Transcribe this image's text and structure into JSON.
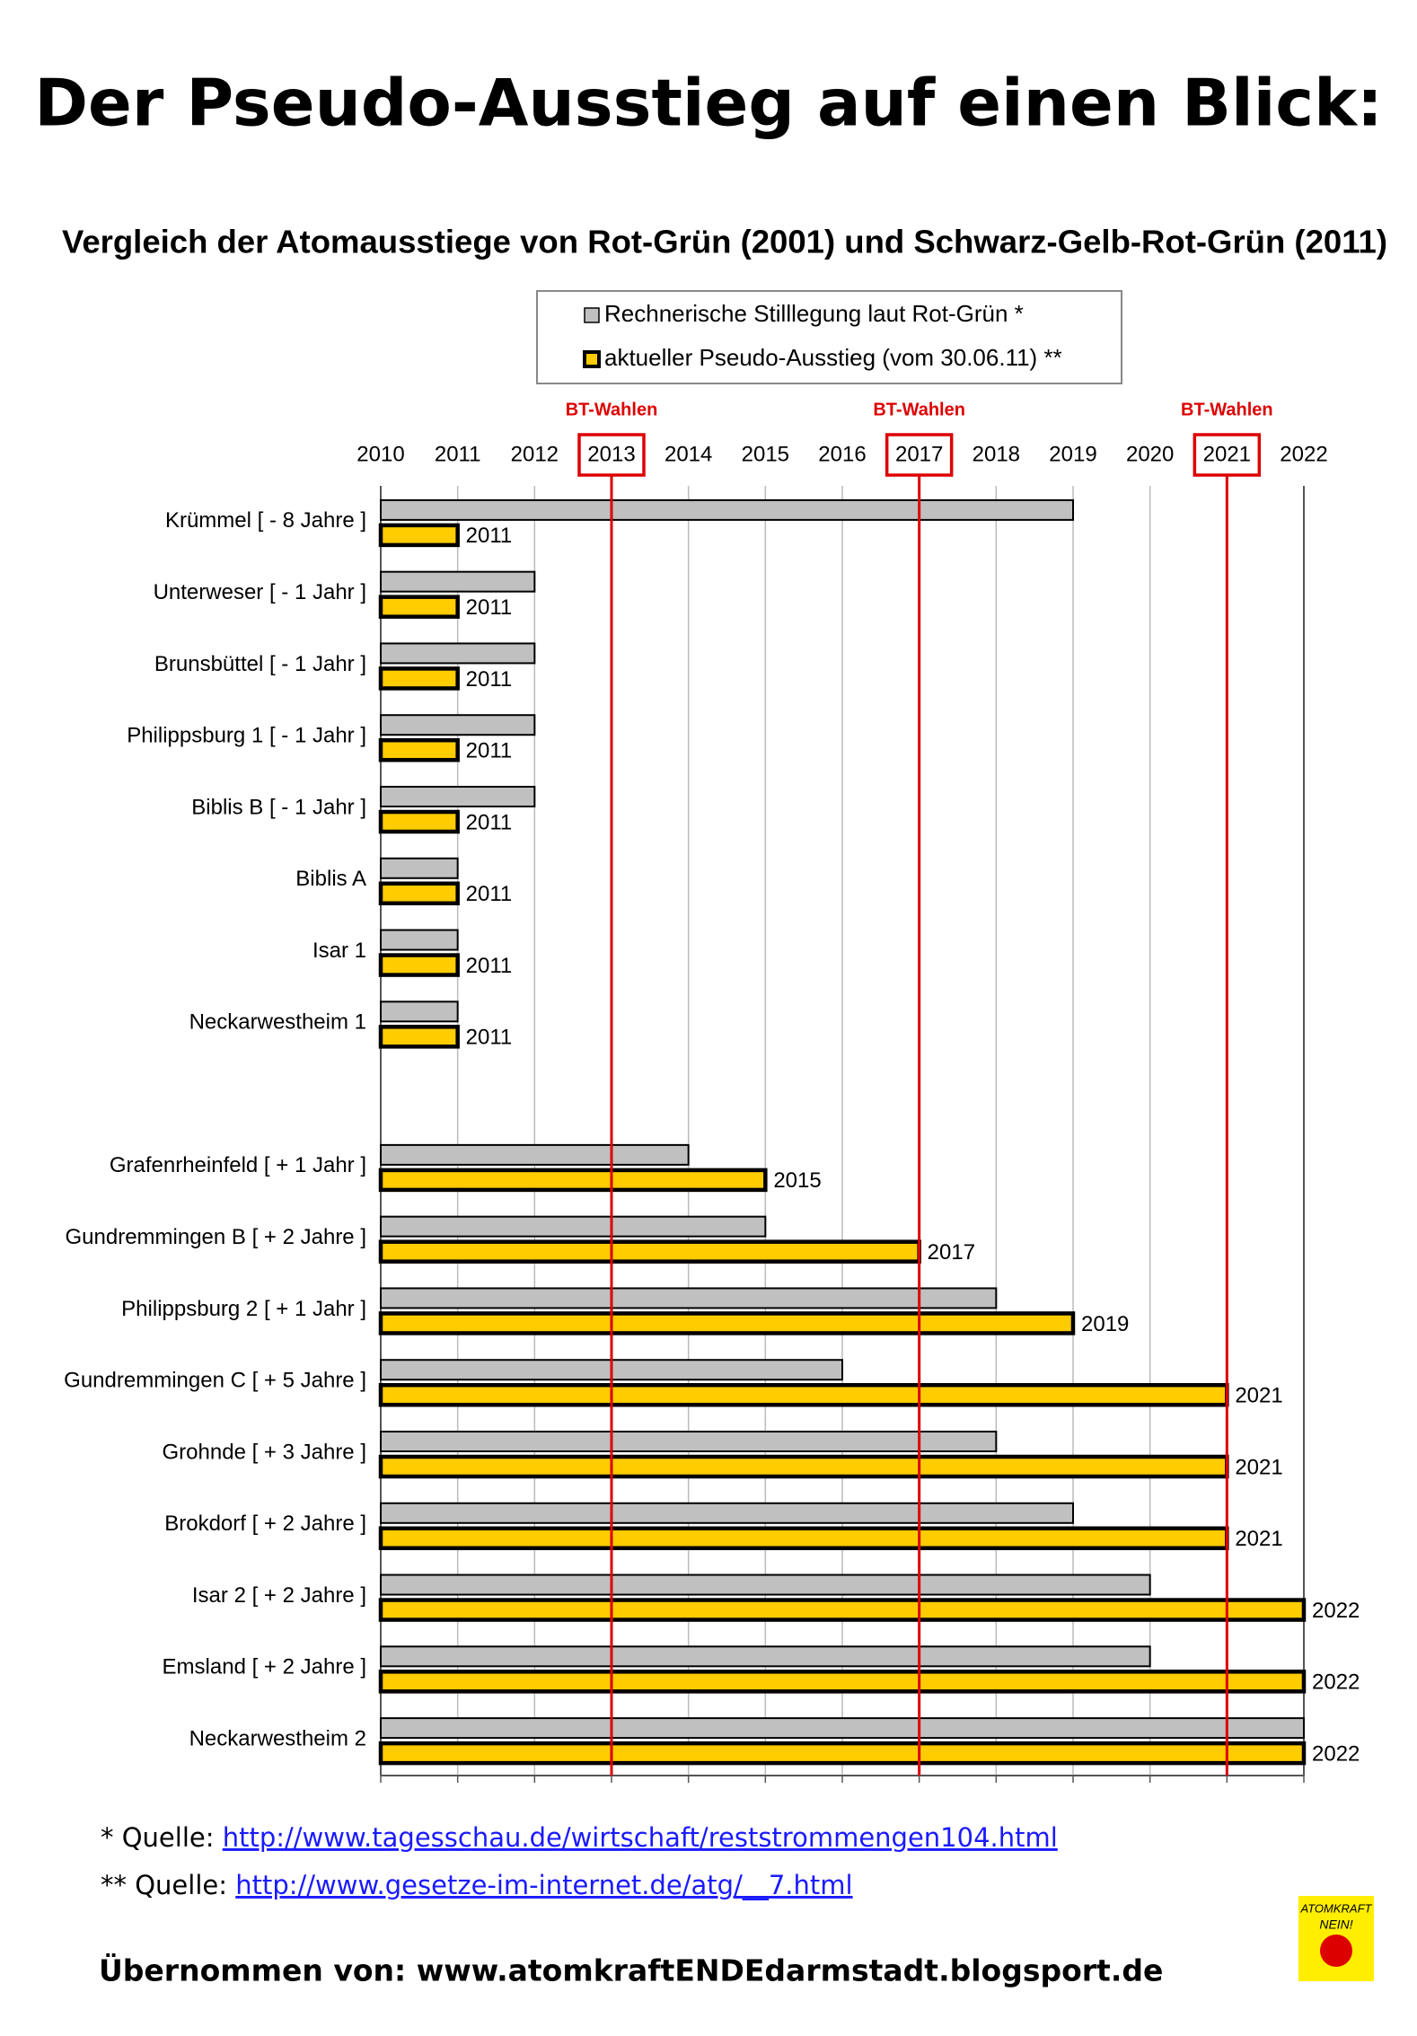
{
  "chart_data": {
    "type": "bar",
    "orientation": "horizontal",
    "title": "Der Pseudo-Ausstieg auf einen Blick:",
    "subtitle": "Vergleich der Atomausstiege von Rot-Grün (2001) und Schwarz-Gelb-Rot-Grün (2011)",
    "categories": [
      "Krümmel   [ - 8  Jahre ]",
      "Unterweser   [ - 1  Jahr ]",
      "Brunsbüttel   [ - 1  Jahr ]",
      "Philippsburg 1   [ - 1  Jahr ]",
      "Biblis B   [ - 1  Jahr ]",
      "Biblis A",
      "Isar 1",
      "Neckarwestheim 1",
      null,
      "Grafenrheinfeld   [ +  1 Jahr ]",
      "Gundremmingen B   [ +  2 Jahre ]",
      "Philippsburg 2   [ + 1  Jahr ]",
      "Gundremmingen C   [ + 5  Jahre ]",
      "Grohnde   [ + 3  Jahre ]",
      "Brokdorf   [ + 2  Jahre ]",
      "Isar 2   [ + 2  Jahre ]",
      "Emsland   [ + 2  Jahre ]",
      "Neckarwestheim 2"
    ],
    "series": [
      {
        "name": "Rechnerische Stilllegung laut Rot-Grün *",
        "color": "#c0c0c0",
        "values": [
          2019,
          2012,
          2012,
          2012,
          2012,
          2011,
          2011,
          2011,
          null,
          2014,
          2015,
          2018,
          2016,
          2018,
          2019,
          2020,
          2020,
          2022
        ]
      },
      {
        "name": "aktueller Pseudo-Ausstieg (vom 30.06.11) **",
        "color": "#ffcc00",
        "values": [
          2011,
          2011,
          2011,
          2011,
          2011,
          2011,
          2011,
          2011,
          null,
          2015,
          2017,
          2019,
          2021,
          2021,
          2021,
          2022,
          2022,
          2022
        ]
      }
    ],
    "xlim": [
      2010,
      2022
    ],
    "xticks": [
      2010,
      2011,
      2012,
      2013,
      2014,
      2015,
      2016,
      2017,
      2018,
      2019,
      2020,
      2021,
      2022
    ],
    "grid": true,
    "annotations": [
      {
        "label": "BT-Wahlen",
        "x": 2013
      },
      {
        "label": "BT-Wahlen",
        "x": 2017
      },
      {
        "label": "BT-Wahlen",
        "x": 2021
      }
    ]
  },
  "footnotes": [
    {
      "prefix": "* Quelle:",
      "link": "http://www.tagesschau.de/wirtschaft/reststrommengen104.html"
    },
    {
      "prefix": "** Quelle:",
      "link": "http://www.gesetze-im-internet.de/atg/__7.html"
    }
  ],
  "credit": "Übernommen von: www.atomkraftENDEdarmstadt.blogsport.de",
  "logo": {
    "top": "ATOMKRAFT",
    "bottom": "NEIN!"
  }
}
